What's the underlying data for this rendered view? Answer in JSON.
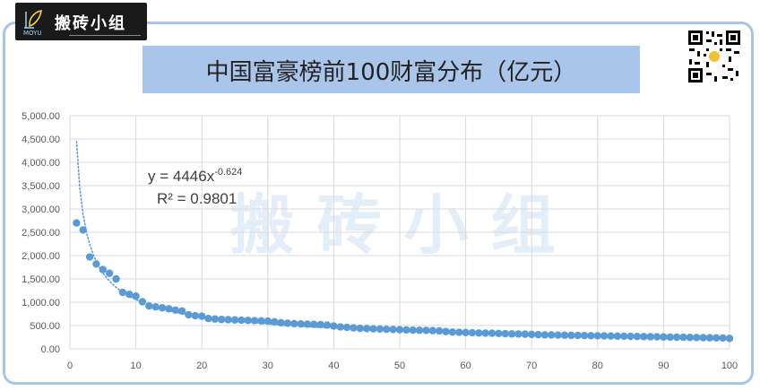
{
  "brand": {
    "name": "搬砖小组",
    "sub": "MOYU"
  },
  "page_title": "中国富豪榜前100财富分布（亿元）",
  "chart_data": {
    "type": "scatter",
    "title": "中国富豪榜前100财富分布（亿元）",
    "xlabel": "",
    "ylabel": "",
    "xlim": [
      0,
      100
    ],
    "ylim": [
      0,
      5000
    ],
    "xticks": [
      0,
      10,
      20,
      30,
      40,
      50,
      60,
      70,
      80,
      90,
      100
    ],
    "yticks": [
      "0.00",
      "500.00",
      "1,000.00",
      "1,500.00",
      "2,000.00",
      "2,500.00",
      "3,000.00",
      "3,500.00",
      "4,000.00",
      "4,500.00",
      "5,000.00"
    ],
    "grid": true,
    "marker_color": "#5b9bd5",
    "trendline": {
      "type": "power",
      "a": 4446,
      "b": -0.624,
      "color": "#5b9bd5",
      "style": "dotted"
    },
    "equation_text": "y = 4446x",
    "equation_exp": "-0.624",
    "r2_text": "R² = 0.9801",
    "watermark": "搬 砖 小 组",
    "x": [
      1,
      2,
      3,
      4,
      5,
      6,
      7,
      8,
      9,
      10,
      11,
      12,
      13,
      14,
      15,
      16,
      17,
      18,
      19,
      20,
      21,
      22,
      23,
      24,
      25,
      26,
      27,
      28,
      29,
      30,
      31,
      32,
      33,
      34,
      35,
      36,
      37,
      38,
      39,
      40,
      41,
      42,
      43,
      44,
      45,
      46,
      47,
      48,
      49,
      50,
      51,
      52,
      53,
      54,
      55,
      56,
      57,
      58,
      59,
      60,
      61,
      62,
      63,
      64,
      65,
      66,
      67,
      68,
      69,
      70,
      71,
      72,
      73,
      74,
      75,
      76,
      77,
      78,
      79,
      80,
      81,
      82,
      83,
      84,
      85,
      86,
      87,
      88,
      89,
      90,
      91,
      92,
      93,
      94,
      95,
      96,
      97,
      98,
      99,
      100
    ],
    "y": [
      2700,
      2550,
      1970,
      1820,
      1700,
      1620,
      1500,
      1210,
      1170,
      1130,
      1010,
      920,
      900,
      880,
      860,
      830,
      810,
      730,
      710,
      700,
      650,
      640,
      630,
      625,
      620,
      615,
      610,
      605,
      600,
      595,
      580,
      560,
      550,
      540,
      535,
      530,
      525,
      520,
      510,
      490,
      470,
      460,
      450,
      440,
      435,
      430,
      425,
      420,
      415,
      410,
      405,
      400,
      398,
      395,
      390,
      385,
      370,
      360,
      355,
      350,
      345,
      340,
      338,
      335,
      330,
      325,
      320,
      318,
      315,
      310,
      305,
      300,
      298,
      295,
      292,
      290,
      288,
      285,
      282,
      280,
      278,
      275,
      272,
      270,
      268,
      265,
      262,
      260,
      258,
      255,
      252,
      250,
      248,
      245,
      242,
      240,
      238,
      235,
      232,
      225
    ]
  }
}
